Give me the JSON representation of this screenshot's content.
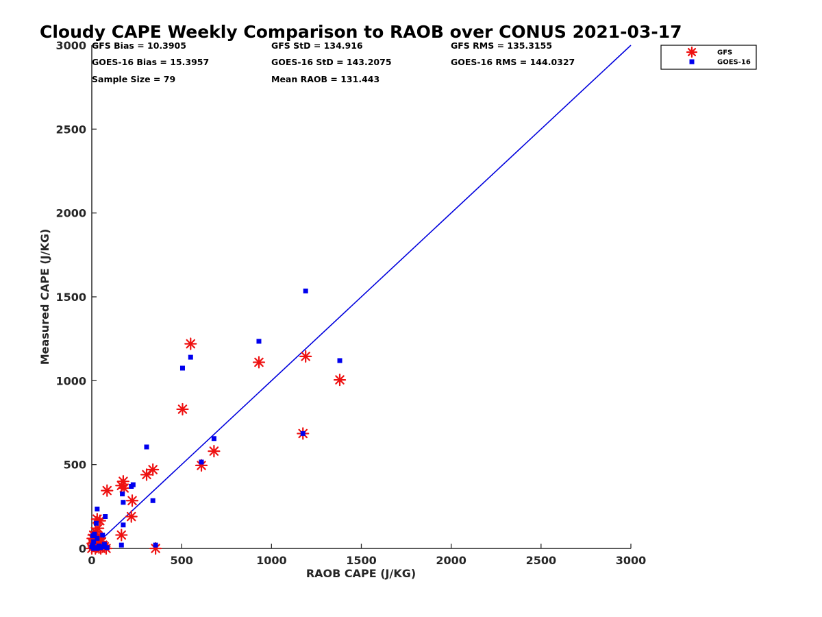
{
  "chart_data": {
    "type": "scatter",
    "title": "Cloudy CAPE Weekly Comparison to RAOB over CONUS 2021-03-17",
    "xlabel": "RAOB CAPE (J/KG)",
    "ylabel": "Measured CAPE (J/KG)",
    "xlim": [
      0,
      3000
    ],
    "ylim": [
      0,
      3000
    ],
    "x_ticks": [
      "0",
      "500",
      "1000",
      "1500",
      "2000",
      "2500",
      "3000"
    ],
    "y_ticks": [
      "0",
      "500",
      "1000",
      "1500",
      "2000",
      "2500",
      "3000"
    ],
    "grid": false,
    "legend_position": "top-right, outside plot",
    "stats": [
      "GFS Bias = 10.3905",
      "GFS StD = 134.916",
      "GFS RMS = 135.3155",
      "GOES-16 Bias = 15.3957",
      "GOES-16 StD = 143.2075",
      "GOES-16 RMS = 144.0327",
      "Sample Size = 79",
      "Mean RAOB = 131.443"
    ],
    "reference_line": {
      "x": [
        0,
        3000
      ],
      "y": [
        0,
        3000
      ],
      "color": "#0000dd"
    },
    "series": [
      {
        "name": "GFS",
        "marker": "asterisk",
        "color": "#ee1111",
        "points": [
          [
            550,
            1220
          ],
          [
            930,
            1110
          ],
          [
            1190,
            1145
          ],
          [
            1380,
            1005
          ],
          [
            505,
            830
          ],
          [
            1175,
            685
          ],
          [
            680,
            580
          ],
          [
            610,
            495
          ],
          [
            340,
            470
          ],
          [
            305,
            440
          ],
          [
            175,
            400
          ],
          [
            165,
            375
          ],
          [
            180,
            360
          ],
          [
            85,
            345
          ],
          [
            225,
            285
          ],
          [
            220,
            190
          ],
          [
            165,
            80
          ],
          [
            355,
            0
          ],
          [
            30,
            175
          ],
          [
            45,
            165
          ],
          [
            35,
            120
          ],
          [
            20,
            100
          ],
          [
            10,
            80
          ],
          [
            5,
            60
          ],
          [
            15,
            50
          ],
          [
            5,
            30
          ],
          [
            10,
            15
          ],
          [
            25,
            10
          ],
          [
            40,
            5
          ],
          [
            55,
            40
          ],
          [
            60,
            20
          ],
          [
            70,
            10
          ],
          [
            80,
            0
          ],
          [
            50,
            0
          ],
          [
            30,
            30
          ],
          [
            45,
            60
          ],
          [
            0,
            0
          ],
          [
            20,
            0
          ]
        ]
      },
      {
        "name": "GOES-16",
        "marker": "square",
        "color": "#0000ee",
        "points": [
          [
            1190,
            1535
          ],
          [
            930,
            1235
          ],
          [
            1380,
            1120
          ],
          [
            550,
            1140
          ],
          [
            505,
            1075
          ],
          [
            1175,
            685
          ],
          [
            680,
            655
          ],
          [
            305,
            605
          ],
          [
            610,
            515
          ],
          [
            230,
            380
          ],
          [
            220,
            370
          ],
          [
            170,
            325
          ],
          [
            340,
            285
          ],
          [
            175,
            275
          ],
          [
            30,
            235
          ],
          [
            75,
            190
          ],
          [
            25,
            150
          ],
          [
            175,
            140
          ],
          [
            60,
            80
          ],
          [
            15,
            85
          ],
          [
            5,
            75
          ],
          [
            30,
            60
          ],
          [
            10,
            40
          ],
          [
            5,
            20
          ],
          [
            40,
            15
          ],
          [
            60,
            10
          ],
          [
            70,
            25
          ],
          [
            20,
            5
          ],
          [
            355,
            20
          ],
          [
            165,
            20
          ],
          [
            85,
            5
          ],
          [
            50,
            5
          ],
          [
            10,
            0
          ],
          [
            0,
            10
          ],
          [
            30,
            0
          ]
        ]
      }
    ]
  }
}
